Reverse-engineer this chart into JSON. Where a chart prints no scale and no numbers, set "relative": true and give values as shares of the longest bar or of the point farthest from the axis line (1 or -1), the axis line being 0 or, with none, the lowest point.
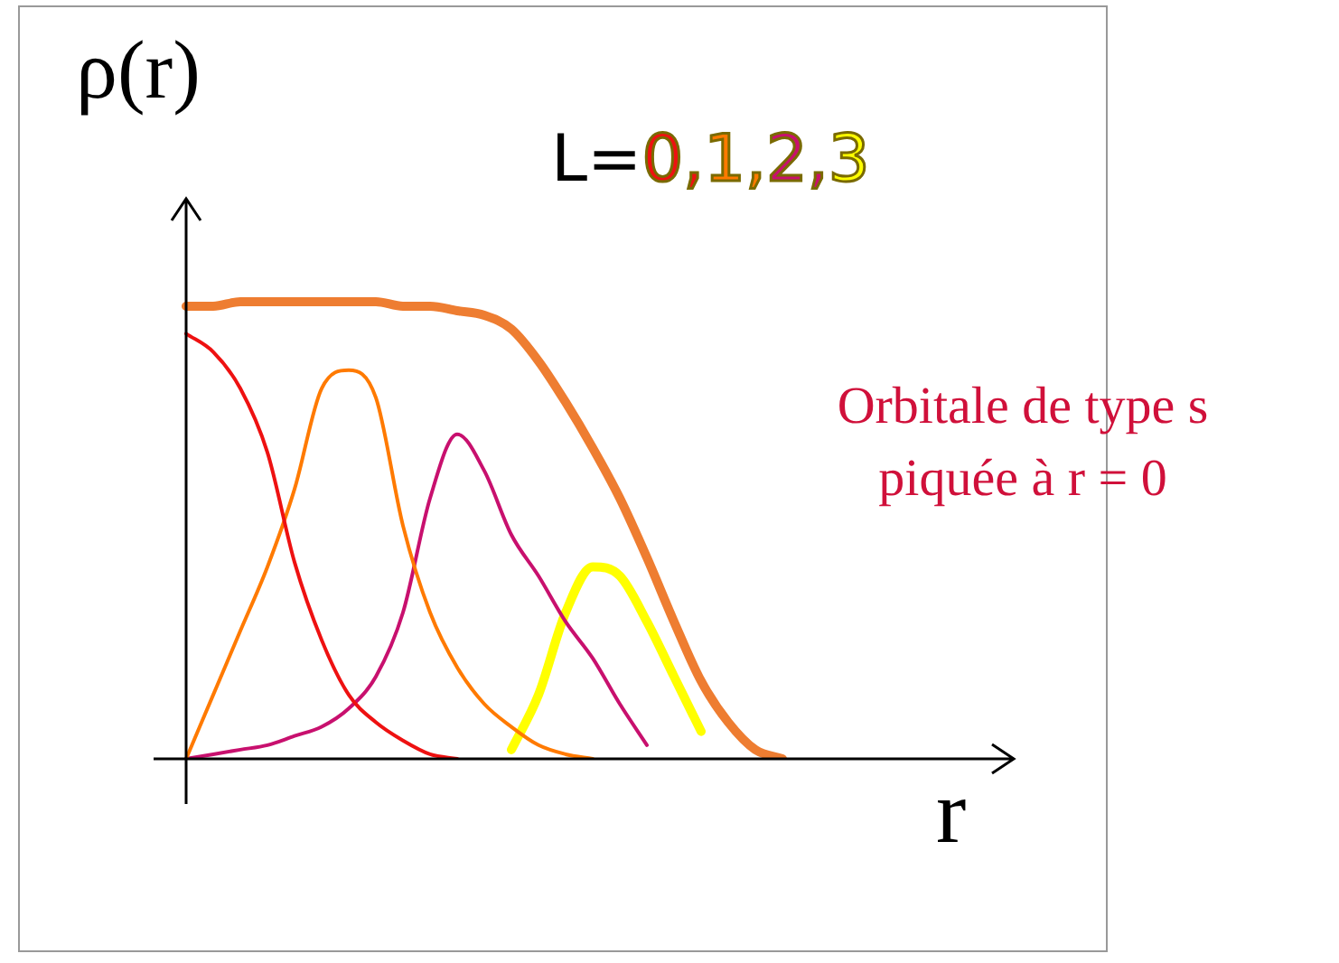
{
  "chart_data": {
    "type": "line",
    "relative": true,
    "xlabel": "r",
    "ylabel": "ρ(r)",
    "legend_title": "L=",
    "legend": "top",
    "grid": false,
    "annotations": [
      "Orbitale de type s piquée à r = 0"
    ],
    "categories": [
      null,
      null,
      null,
      null,
      null,
      null,
      null,
      null,
      null,
      null,
      null,
      null,
      null,
      null,
      null,
      null,
      null,
      null,
      null,
      null,
      null,
      null,
      null,
      null,
      null,
      null,
      null,
      null,
      null,
      null,
      null
    ],
    "series": [
      {
        "color": "#ee7d31",
        "values": [
          0.99,
          0.99,
          1.0,
          1.0,
          1.0,
          1.0,
          1.0,
          1.0,
          0.99,
          0.99,
          0.98,
          0.97,
          0.94,
          0.87,
          0.78,
          0.68,
          0.57,
          0.44,
          0.3,
          0.17,
          0.08,
          0.02,
          0,
          null,
          null,
          null,
          null,
          null,
          null,
          null,
          null
        ]
      },
      {
        "name": "0,",
        "color": "#ee1111",
        "values": [
          0.93,
          0.89,
          0.81,
          0.67,
          0.43,
          0.26,
          0.14,
          0.08,
          0.04,
          0.01,
          0,
          null,
          null,
          null,
          null,
          null,
          null,
          null,
          null,
          null,
          null,
          null,
          null,
          null,
          null,
          null,
          null,
          null,
          null,
          null,
          null
        ]
      },
      {
        "name": "1,",
        "color": "#ff7a00",
        "values": [
          0,
          0.14,
          0.28,
          0.42,
          0.59,
          0.81,
          0.85,
          0.79,
          0.51,
          0.32,
          0.2,
          0.12,
          0.07,
          0.03,
          0.01,
          0,
          null,
          null,
          null,
          null,
          null,
          null,
          null,
          null,
          null,
          null,
          null,
          null,
          null,
          null,
          null
        ]
      },
      {
        "name": "2,",
        "color": "#c8106e",
        "values": [
          0,
          0.01,
          0.02,
          0.03,
          0.05,
          0.07,
          0.11,
          0.18,
          0.32,
          0.57,
          0.71,
          0.63,
          0.49,
          0.4,
          0.3,
          0.22,
          0.12,
          0.03,
          null,
          null,
          null,
          null,
          null,
          null,
          null,
          null,
          null,
          null,
          null,
          null,
          null
        ]
      },
      {
        "name": "3",
        "color": "#ffff00",
        "values": [
          null,
          null,
          null,
          null,
          null,
          null,
          null,
          null,
          null,
          null,
          null,
          null,
          0.02,
          0.14,
          0.32,
          0.42,
          0.4,
          0.3,
          0.18,
          0.06,
          null,
          null,
          null,
          null,
          null,
          null,
          null,
          null,
          null,
          null,
          null
        ]
      }
    ]
  }
}
